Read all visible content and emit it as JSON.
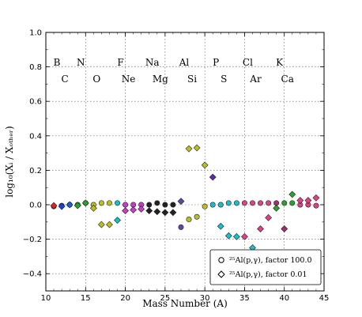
{
  "chart_data": {
    "type": "scatter",
    "title": "",
    "xlabel": "Mass Number (A)",
    "ylabel": "log₁₀(Xᵢ / Xₒₜₕₑᵣ)",
    "xlim": [
      10,
      45
    ],
    "ylim": [
      -0.5,
      1.0
    ],
    "xticks": [
      10,
      15,
      20,
      25,
      30,
      35,
      40,
      45
    ],
    "yticks": [
      -0.4,
      -0.2,
      0.0,
      0.2,
      0.4,
      0.6,
      0.8,
      1.0
    ],
    "ytick_labels": [
      "−0.4",
      "−0.2",
      "0.0",
      "0.2",
      "0.4",
      "0.6",
      "0.8",
      "1.0"
    ],
    "grid": true,
    "legend_position": "lower-right",
    "element_labels": [
      {
        "text": "B",
        "x": 11,
        "row": "upper"
      },
      {
        "text": "C",
        "x": 12,
        "row": "lower"
      },
      {
        "text": "N",
        "x": 14,
        "row": "upper"
      },
      {
        "text": "O",
        "x": 16,
        "row": "lower"
      },
      {
        "text": "F",
        "x": 19,
        "row": "upper"
      },
      {
        "text": "Ne",
        "x": 20,
        "row": "lower"
      },
      {
        "text": "Na",
        "x": 23,
        "row": "upper"
      },
      {
        "text": "Mg",
        "x": 24,
        "row": "lower"
      },
      {
        "text": "Al",
        "x": 27,
        "row": "upper"
      },
      {
        "text": "Si",
        "x": 28,
        "row": "lower"
      },
      {
        "text": "P",
        "x": 31,
        "row": "upper"
      },
      {
        "text": "S",
        "x": 32,
        "row": "lower"
      },
      {
        "text": "Cl",
        "x": 35,
        "row": "upper"
      },
      {
        "text": "Ar",
        "x": 36,
        "row": "lower"
      },
      {
        "text": "K",
        "x": 39,
        "row": "upper"
      },
      {
        "text": "Ca",
        "x": 40,
        "row": "lower"
      }
    ],
    "series": [
      {
        "name": "25Al(p,γ), factor 100.0",
        "marker": "circle",
        "points": [
          {
            "x": 11,
            "y": -0.01,
            "color": "#d62728"
          },
          {
            "x": 12,
            "y": -0.005,
            "color": "#1f3fd6"
          },
          {
            "x": 13,
            "y": 0.0,
            "color": "#1f5fd6"
          },
          {
            "x": 14,
            "y": 0.0,
            "color": "#2ca02c"
          },
          {
            "x": 15,
            "y": 0.01,
            "color": "#2ca02c"
          },
          {
            "x": 16,
            "y": 0.0,
            "color": "#bcbd22"
          },
          {
            "x": 17,
            "y": 0.01,
            "color": "#bcbd22"
          },
          {
            "x": 18,
            "y": 0.01,
            "color": "#bcbd22"
          },
          {
            "x": 19,
            "y": 0.01,
            "color": "#17becf"
          },
          {
            "x": 20,
            "y": 0.0,
            "color": "#c83cc8"
          },
          {
            "x": 21,
            "y": 0.0,
            "color": "#c83cc8"
          },
          {
            "x": 22,
            "y": 0.0,
            "color": "#c83cc8"
          },
          {
            "x": 23,
            "y": 0.0,
            "color": "#222222"
          },
          {
            "x": 24,
            "y": 0.01,
            "color": "#222222"
          },
          {
            "x": 25,
            "y": 0.0,
            "color": "#222222"
          },
          {
            "x": 26,
            "y": 0.0,
            "color": "#222222"
          },
          {
            "x": 27,
            "y": -0.13,
            "color": "#5a4aa0"
          },
          {
            "x": 28,
            "y": -0.085,
            "color": "#bcbd22"
          },
          {
            "x": 29,
            "y": -0.07,
            "color": "#bcbd22"
          },
          {
            "x": 30,
            "y": -0.01,
            "color": "#bcbd22"
          },
          {
            "x": 31,
            "y": 0.0,
            "color": "#17becf"
          },
          {
            "x": 32,
            "y": 0.0,
            "color": "#17becf"
          },
          {
            "x": 33,
            "y": 0.01,
            "color": "#17becf"
          },
          {
            "x": 34,
            "y": 0.01,
            "color": "#17becf"
          },
          {
            "x": 35,
            "y": 0.01,
            "color": "#e0408a"
          },
          {
            "x": 36,
            "y": 0.01,
            "color": "#e0408a"
          },
          {
            "x": 37,
            "y": 0.01,
            "color": "#e0408a"
          },
          {
            "x": 38,
            "y": 0.01,
            "color": "#e0408a"
          },
          {
            "x": 39,
            "y": 0.01,
            "color": "#a0306a"
          },
          {
            "x": 40,
            "y": 0.01,
            "color": "#2ca02c"
          },
          {
            "x": 41,
            "y": 0.01,
            "color": "#2ca02c"
          },
          {
            "x": 42,
            "y": 0.0,
            "color": "#e0408a"
          },
          {
            "x": 43,
            "y": 0.0,
            "color": "#e0408a"
          },
          {
            "x": 44,
            "y": -0.005,
            "color": "#e0408a"
          }
        ]
      },
      {
        "name": "25Al(p,γ), factor 0.01",
        "marker": "diamond",
        "points": [
          {
            "x": 11,
            "y": -0.005,
            "color": "#d62728"
          },
          {
            "x": 12,
            "y": -0.01,
            "color": "#1f3fd6"
          },
          {
            "x": 13,
            "y": 0.0,
            "color": "#1f5fd6"
          },
          {
            "x": 14,
            "y": -0.005,
            "color": "#2ca02c"
          },
          {
            "x": 15,
            "y": 0.01,
            "color": "#2ca02c"
          },
          {
            "x": 16,
            "y": -0.02,
            "color": "#bcbd22"
          },
          {
            "x": 17,
            "y": -0.115,
            "color": "#bcbd22"
          },
          {
            "x": 18,
            "y": -0.115,
            "color": "#bcbd22"
          },
          {
            "x": 19,
            "y": -0.09,
            "color": "#17becf"
          },
          {
            "x": 20,
            "y": -0.035,
            "color": "#c83cc8"
          },
          {
            "x": 21,
            "y": -0.03,
            "color": "#c83cc8"
          },
          {
            "x": 22,
            "y": -0.025,
            "color": "#c83cc8"
          },
          {
            "x": 23,
            "y": -0.035,
            "color": "#222222"
          },
          {
            "x": 24,
            "y": -0.04,
            "color": "#222222"
          },
          {
            "x": 25,
            "y": -0.045,
            "color": "#222222"
          },
          {
            "x": 26,
            "y": -0.045,
            "color": "#222222"
          },
          {
            "x": 27,
            "y": 0.02,
            "color": "#5a4aa0"
          },
          {
            "x": 28,
            "y": 0.325,
            "color": "#bcbd22"
          },
          {
            "x": 29,
            "y": 0.33,
            "color": "#bcbd22"
          },
          {
            "x": 30,
            "y": 0.23,
            "color": "#bcbd22"
          },
          {
            "x": 31,
            "y": 0.16,
            "color": "#5a2ab0"
          },
          {
            "x": 32,
            "y": -0.125,
            "color": "#17becf"
          },
          {
            "x": 33,
            "y": -0.18,
            "color": "#17becf"
          },
          {
            "x": 34,
            "y": -0.185,
            "color": "#17becf"
          },
          {
            "x": 35,
            "y": -0.185,
            "color": "#e0408a"
          },
          {
            "x": 36,
            "y": -0.25,
            "color": "#17becf"
          },
          {
            "x": 37,
            "y": -0.14,
            "color": "#e0408a"
          },
          {
            "x": 38,
            "y": -0.075,
            "color": "#e0408a"
          },
          {
            "x": 39,
            "y": -0.02,
            "color": "#2ca02c"
          },
          {
            "x": 40,
            "y": -0.14,
            "color": "#a0306a"
          },
          {
            "x": 41,
            "y": 0.06,
            "color": "#2ca02c"
          },
          {
            "x": 42,
            "y": 0.025,
            "color": "#e0408a"
          },
          {
            "x": 43,
            "y": 0.025,
            "color": "#e0408a"
          },
          {
            "x": 44,
            "y": 0.04,
            "color": "#e0408a"
          }
        ]
      }
    ],
    "legend_text": {
      "circle": "²⁵Al(p,γ), factor 100.0",
      "diamond": "²⁵Al(p,γ), factor 0.01"
    }
  }
}
